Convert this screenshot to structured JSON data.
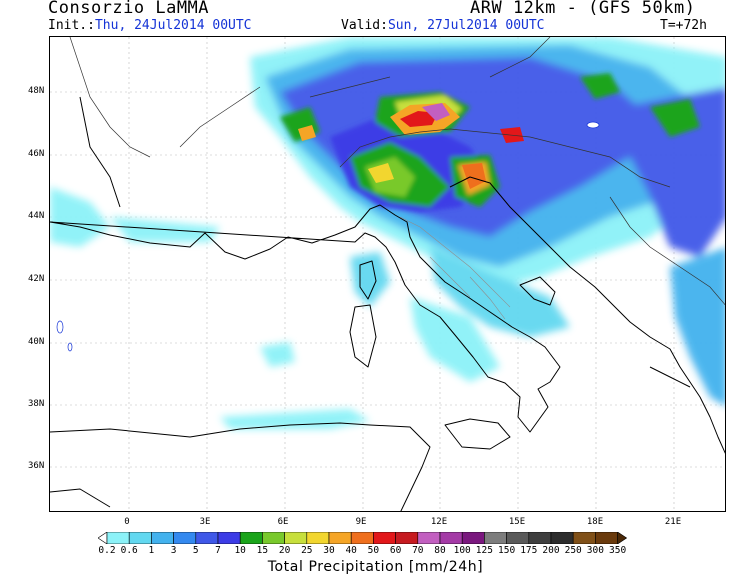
{
  "header": {
    "organization": "Consorzio LaMMA",
    "model": "ARW 12km - (GFS 50km)",
    "init_label": "Init.:",
    "init_value": "Thu, 24Jul2014 00UTC",
    "valid_label": "Valid:",
    "valid_value": "Sun, 27Jul2014 00UTC",
    "forecast_step": "T=+72h"
  },
  "map": {
    "lat_labels": [
      "48N",
      "46N",
      "44N",
      "42N",
      "40N",
      "38N",
      "36N"
    ],
    "lon_labels": [
      "0",
      "3E",
      "6E",
      "9E",
      "12E",
      "15E",
      "18E",
      "21E"
    ]
  },
  "colorbar": {
    "title": "Total Precipitation [mm/24h]",
    "levels": [
      "0.2",
      "0.6",
      "1",
      "3",
      "5",
      "7",
      "10",
      "15",
      "20",
      "25",
      "30",
      "40",
      "50",
      "60",
      "70",
      "80",
      "100",
      "125",
      "150",
      "175",
      "200",
      "250",
      "300",
      "350"
    ],
    "colors": [
      "#ffffff",
      "#8cf2f8",
      "#62d8f0",
      "#43b2ee",
      "#3489ef",
      "#3f58e8",
      "#3c3ce6",
      "#1aa41a",
      "#79c92c",
      "#c7df3c",
      "#f2d62f",
      "#f5a526",
      "#ef6f1d",
      "#e2171a",
      "#c61a20",
      "#c25fc0",
      "#a43aa6",
      "#7a177e",
      "#7d7d7d",
      "#5a5a5a",
      "#3f3f3f",
      "#2d2d2d",
      "#805018",
      "#6a3a0c",
      "#4a2806"
    ]
  }
}
